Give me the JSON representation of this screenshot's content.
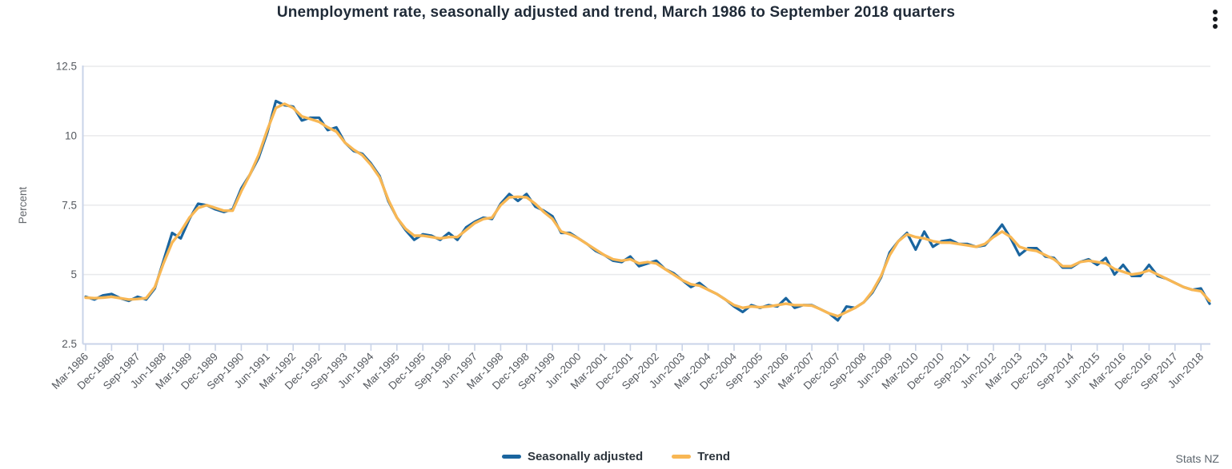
{
  "header": {
    "title": "Unemployment rate, seasonally adjusted and trend, March 1986 to September 2018 quarters"
  },
  "footer": {
    "source": "Stats NZ"
  },
  "icons": {
    "menu": "kebab-vertical-ellipsis"
  },
  "legend": [
    {
      "label": "Seasonally adjusted",
      "color": "#1a659f"
    },
    {
      "label": "Trend",
      "color": "#f8b754"
    }
  ],
  "colors": {
    "axis_line": "#c9d3e8",
    "gridline": "#e9eaec",
    "tick_text": "#55595f",
    "axis_title_text": "#65696e",
    "title_text": "#1f2a37",
    "source_text": "#5d666e",
    "seasonally_adjusted": "#1a659f",
    "trend": "#f8b754"
  },
  "chart_data": {
    "type": "line",
    "title": "Unemployment rate, seasonally adjusted and trend, March 1986 to September 2018 quarters",
    "xlabel": "",
    "ylabel": "Percent",
    "ylim": [
      2.5,
      12.5
    ],
    "yticks": [
      12.5,
      10,
      7.5,
      5,
      2.5
    ],
    "grid": "horizontal",
    "legend_position": "bottom-center",
    "x_unit": "quarter",
    "x_start": "Mar-1986",
    "x_end": "Sep-2018",
    "n_points": 131,
    "tick_every": 3,
    "tick_labels": [
      "Mar-1986",
      "Dec-1986",
      "Sep-1987",
      "Jun-1988",
      "Mar-1989",
      "Dec-1989",
      "Sep-1990",
      "Jun-1991",
      "Mar-1992",
      "Dec-1992",
      "Sep-1993",
      "Jun-1994",
      "Mar-1995",
      "Dec-1995",
      "Sep-1996",
      "Jun-1997",
      "Mar-1998",
      "Dec-1998",
      "Sep-1999",
      "Jun-2000",
      "Mar-2001",
      "Dec-2001",
      "Sep-2002",
      "Jun-2003",
      "Mar-2004",
      "Dec-2004",
      "Sep-2005",
      "Jun-2006",
      "Mar-2007",
      "Dec-2007",
      "Sep-2008",
      "Jun-2009",
      "Mar-2010",
      "Dec-2010",
      "Sep-2011",
      "Jun-2012",
      "Mar-2013",
      "Dec-2013",
      "Sep-2014",
      "Jun-2015",
      "Mar-2016",
      "Dec-2016",
      "Sep-2017",
      "Jun-2018"
    ],
    "series": [
      {
        "name": "Seasonally adjusted",
        "color": "#1a659f",
        "values": [
          4.2,
          4.1,
          4.25,
          4.3,
          4.15,
          4.05,
          4.2,
          4.1,
          4.5,
          5.5,
          6.5,
          6.3,
          7.0,
          7.55,
          7.5,
          7.35,
          7.25,
          7.35,
          8.1,
          8.6,
          9.2,
          10.1,
          11.25,
          11.1,
          11.05,
          10.55,
          10.65,
          10.65,
          10.2,
          10.3,
          9.75,
          9.45,
          9.35,
          9.0,
          8.55,
          7.65,
          7.05,
          6.6,
          6.25,
          6.45,
          6.4,
          6.25,
          6.5,
          6.25,
          6.7,
          6.9,
          7.05,
          7.0,
          7.55,
          7.9,
          7.65,
          7.9,
          7.45,
          7.3,
          7.1,
          6.5,
          6.5,
          6.3,
          6.1,
          5.85,
          5.7,
          5.5,
          5.45,
          5.65,
          5.3,
          5.4,
          5.5,
          5.2,
          5.05,
          4.8,
          4.55,
          4.7,
          4.45,
          4.3,
          4.1,
          3.85,
          3.65,
          3.9,
          3.8,
          3.9,
          3.85,
          4.15,
          3.8,
          3.9,
          3.9,
          3.75,
          3.6,
          3.35,
          3.85,
          3.8,
          4.0,
          4.35,
          4.9,
          5.8,
          6.2,
          6.5,
          5.9,
          6.55,
          6.0,
          6.2,
          6.25,
          6.1,
          6.1,
          6.0,
          6.05,
          6.4,
          6.8,
          6.3,
          5.7,
          5.95,
          5.95,
          5.65,
          5.6,
          5.25,
          5.25,
          5.45,
          5.55,
          5.35,
          5.6,
          5.0,
          5.35,
          4.95,
          4.95,
          5.35,
          4.95,
          4.85,
          4.7,
          4.55,
          4.45,
          4.5,
          3.95
        ]
      },
      {
        "name": "Trend",
        "color": "#f8b754",
        "values": [
          4.17,
          4.15,
          4.17,
          4.2,
          4.15,
          4.1,
          4.12,
          4.15,
          4.55,
          5.4,
          6.15,
          6.55,
          7.05,
          7.4,
          7.5,
          7.4,
          7.3,
          7.3,
          8.0,
          8.6,
          9.3,
          10.2,
          11.0,
          11.15,
          11.0,
          10.7,
          10.6,
          10.5,
          10.3,
          10.15,
          9.75,
          9.5,
          9.3,
          8.95,
          8.5,
          7.7,
          7.05,
          6.65,
          6.4,
          6.4,
          6.35,
          6.3,
          6.35,
          6.35,
          6.6,
          6.85,
          7.0,
          7.05,
          7.5,
          7.78,
          7.8,
          7.78,
          7.55,
          7.25,
          7.0,
          6.55,
          6.45,
          6.3,
          6.1,
          5.9,
          5.7,
          5.55,
          5.5,
          5.55,
          5.4,
          5.45,
          5.4,
          5.2,
          5.0,
          4.8,
          4.65,
          4.6,
          4.45,
          4.3,
          4.1,
          3.9,
          3.8,
          3.85,
          3.82,
          3.85,
          3.9,
          3.95,
          3.9,
          3.9,
          3.88,
          3.75,
          3.6,
          3.5,
          3.65,
          3.8,
          4.0,
          4.4,
          4.95,
          5.7,
          6.2,
          6.45,
          6.35,
          6.3,
          6.2,
          6.15,
          6.15,
          6.1,
          6.05,
          6.0,
          6.1,
          6.35,
          6.55,
          6.35,
          6.0,
          5.9,
          5.85,
          5.7,
          5.55,
          5.3,
          5.3,
          5.45,
          5.5,
          5.45,
          5.4,
          5.2,
          5.1,
          5.0,
          5.05,
          5.15,
          5.0,
          4.85,
          4.7,
          4.55,
          4.45,
          4.4,
          4.05
        ]
      }
    ]
  }
}
